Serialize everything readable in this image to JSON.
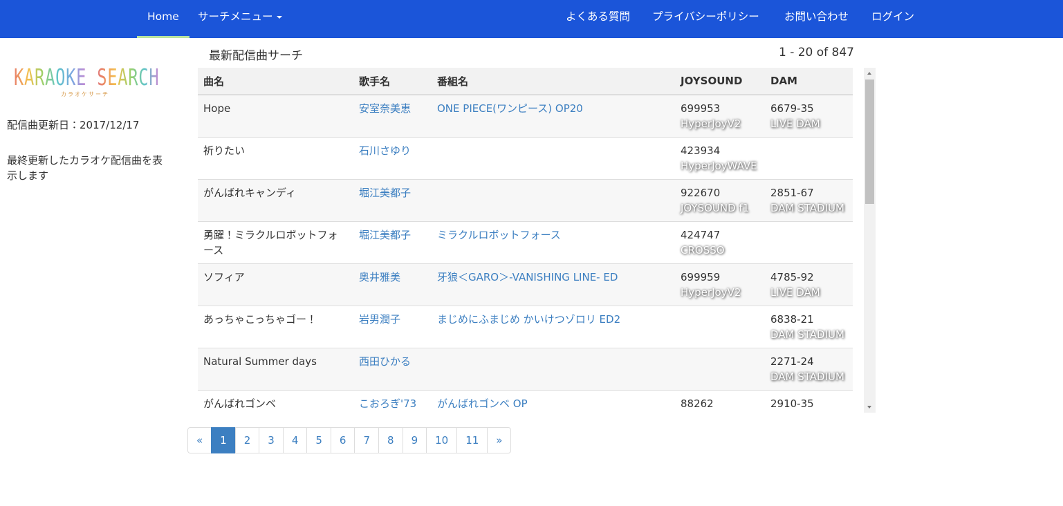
{
  "nav": {
    "left": [
      "Home",
      "サーチメニュー"
    ],
    "right": [
      "よくある質問",
      "プライバシーポリシー",
      "お問い合わせ",
      "ログイン"
    ]
  },
  "sidebar": {
    "logo": "KARAOKE SEARCH",
    "logo_sub": "カラオケサーチ",
    "updated": "配信曲更新日：2017/12/17",
    "description": "最終更新したカラオケ配信曲を表示します"
  },
  "main": {
    "title": "最新配信曲サーチ",
    "count": "1 - 20 of 847"
  },
  "table": {
    "headers": [
      "曲名",
      "歌手名",
      "番組名",
      "JOYSOUND",
      "DAM"
    ],
    "rows": [
      {
        "song": "Hope",
        "artist": "安室奈美恵",
        "program": "ONE PIECE(ワンピース) OP20",
        "joysound": {
          "number": "699953",
          "model": "HyperJoyV2"
        },
        "dam": {
          "number": "6679-35",
          "model": "LIVE DAM"
        }
      },
      {
        "song": "祈りたい",
        "artist": "石川さゆり",
        "program": null,
        "joysound": {
          "number": "423934",
          "model": "HyperJoyWAVE"
        },
        "dam": null
      },
      {
        "song": "がんばれキャンディ",
        "artist": "堀江美都子",
        "program": null,
        "joysound": {
          "number": "922670",
          "model": "JOYSOUND f1"
        },
        "dam": {
          "number": "2851-67",
          "model": "DAM STADIUM"
        }
      },
      {
        "song": "勇躍！ミラクルロボットフォース",
        "artist": "堀江美都子",
        "program": "ミラクルロボットフォース",
        "joysound": {
          "number": "424747",
          "model": "CROSSO"
        },
        "dam": null
      },
      {
        "song": "ソフィア",
        "artist": "奥井雅美",
        "program": "牙狼＜GARO＞-VANISHING LINE- ED",
        "joysound": {
          "number": "699959",
          "model": "HyperJoyV2"
        },
        "dam": {
          "number": "4785-92",
          "model": "LIVE DAM"
        }
      },
      {
        "song": "あっちゃこっちゃゴー！",
        "artist": "岩男潤子",
        "program": "まじめにふまじめ かいけつゾロリ ED2",
        "joysound": null,
        "dam": {
          "number": "6838-21",
          "model": "DAM STADIUM"
        }
      },
      {
        "song": "Natural Summer days",
        "artist": "西田ひかる",
        "program": null,
        "joysound": null,
        "dam": {
          "number": "2271-24",
          "model": "DAM STADIUM"
        }
      },
      {
        "song": "がんばれゴンベ",
        "artist": "こおろぎ'73",
        "program": "がんばれゴンベ OP",
        "joysound": {
          "number": "88262"
        },
        "dam": {
          "number": "2910-35"
        }
      }
    ]
  },
  "pagination": [
    "«",
    "1",
    "2",
    "3",
    "4",
    "5",
    "6",
    "7",
    "8",
    "9",
    "10",
    "11",
    "»"
  ]
}
